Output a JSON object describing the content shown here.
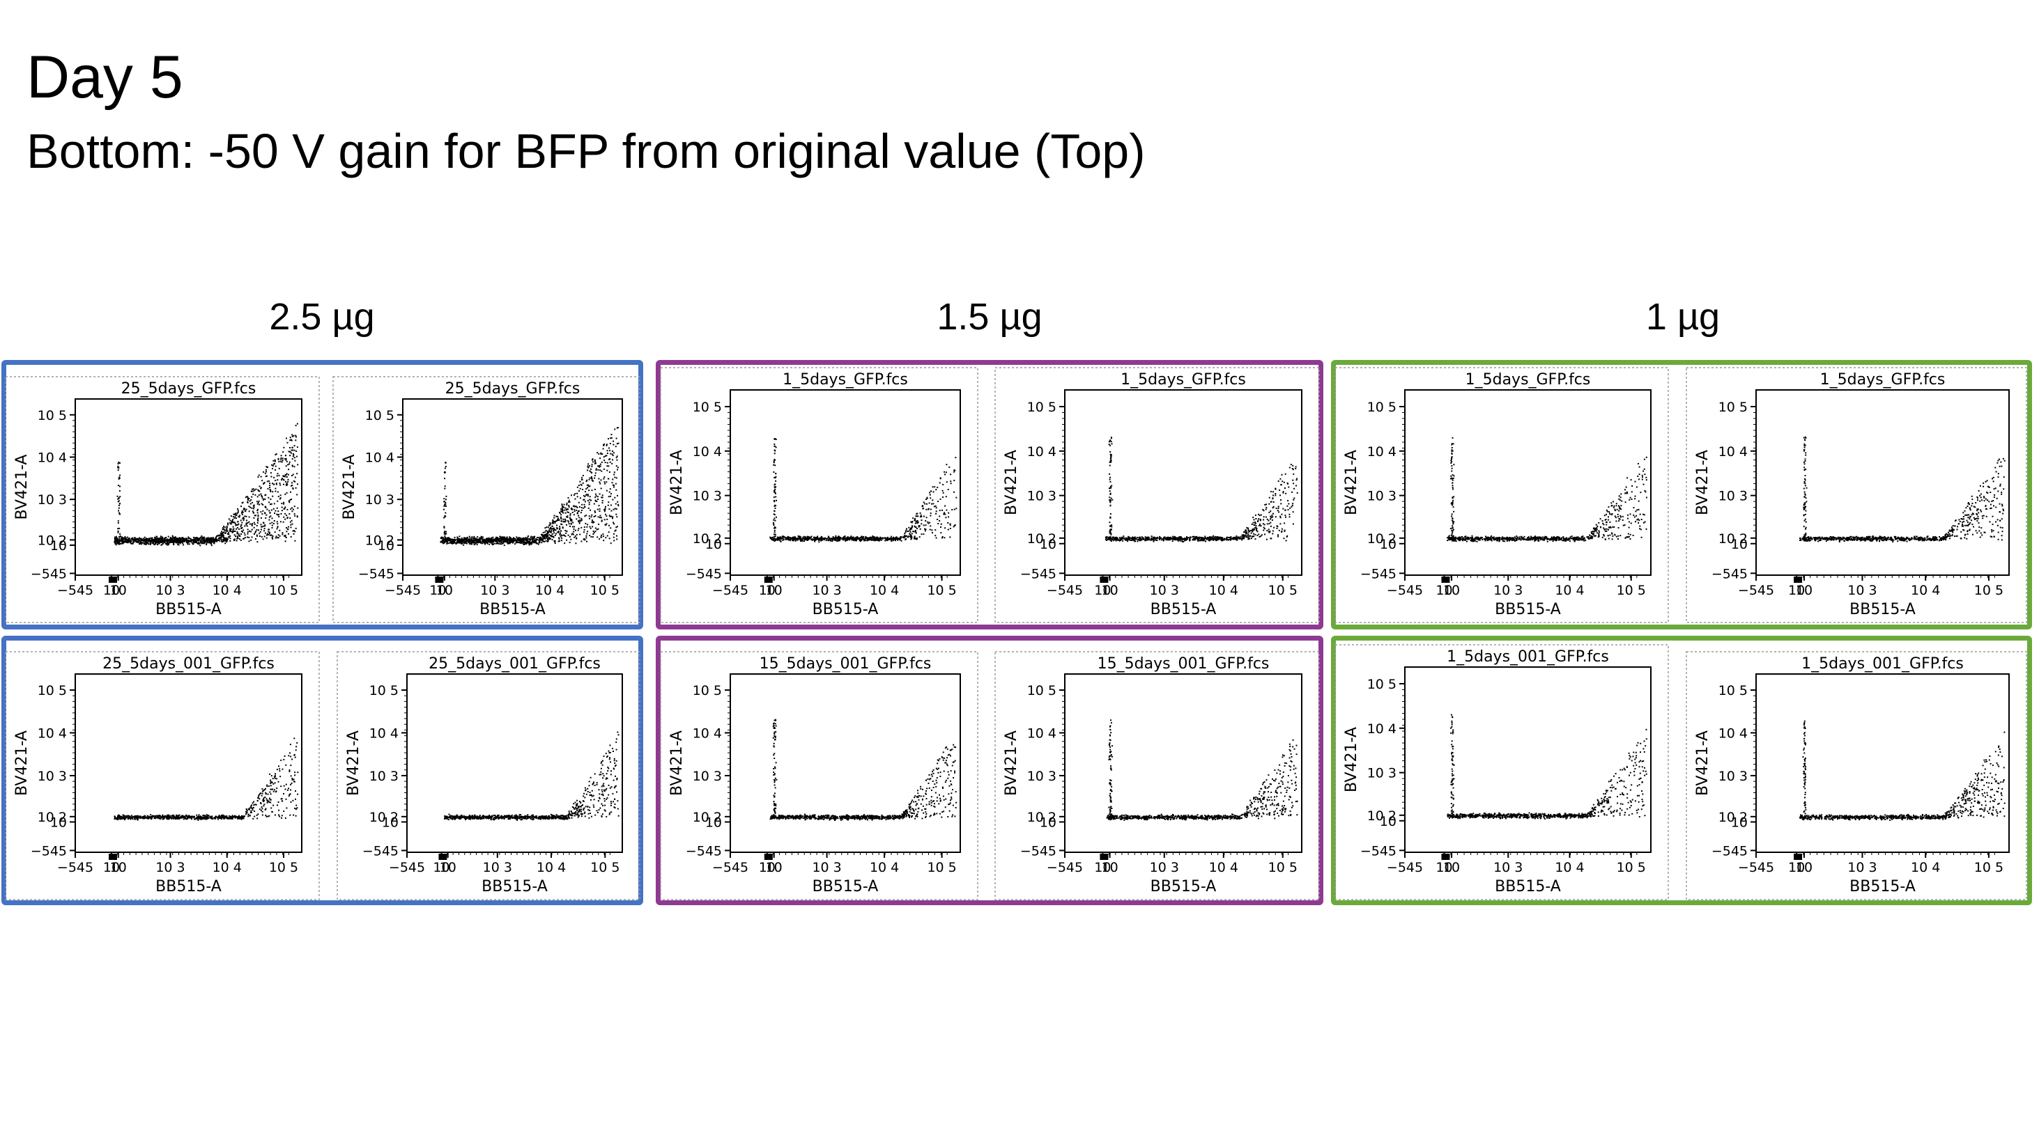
{
  "header": {
    "title": "Day 5",
    "subtitle": "Bottom: -50 V gain for BFP from original value (Top)"
  },
  "colors": {
    "group_2_5": "#4472C4",
    "group_1_5": "#8E3A93",
    "group_1": "#6AAA3A"
  },
  "groups": [
    {
      "label": "2.5 µg",
      "color": "#4472C4"
    },
    {
      "label": "1.5 µg",
      "color": "#8E3A93"
    },
    {
      "label": "1 µg",
      "color": "#6AAA3A"
    }
  ],
  "chart_data": [
    {
      "type": "scatter",
      "group": "2.5 µg",
      "row": "top",
      "title": "25_5days_GFP.fcs",
      "xlabel": "BB515-A",
      "ylabel": "BV421-A",
      "x_ticks": [
        "−545",
        "10",
        "10",
        "10 3",
        "10 4",
        "10 5"
      ],
      "y_ticks": [
        "10 5",
        "10 4",
        "10 3",
        "10 2",
        "10",
        "−545"
      ]
    },
    {
      "type": "scatter",
      "group": "2.5 µg",
      "row": "top",
      "title": "25_5days_GFP.fcs",
      "xlabel": "BB515-A",
      "ylabel": "BV421-A",
      "x_ticks": [
        "−545",
        "10",
        "10",
        "10 3",
        "10 4",
        "10 5"
      ],
      "y_ticks": [
        "10 5",
        "10 4",
        "10 3",
        "10 2",
        "10",
        "−545"
      ]
    },
    {
      "type": "scatter",
      "group": "1.5 µg",
      "row": "top",
      "title": "1_5days_GFP.fcs",
      "xlabel": "BB515-A",
      "ylabel": "BV421-A",
      "x_ticks": [
        "−545",
        "10",
        "10",
        "10 3",
        "10 4",
        "10 5"
      ],
      "y_ticks": [
        "10 5",
        "10 4",
        "10 3",
        "10 2",
        "10",
        "−545"
      ]
    },
    {
      "type": "scatter",
      "group": "1.5 µg",
      "row": "top",
      "title": "1_5days_GFP.fcs",
      "xlabel": "BB515-A",
      "ylabel": "BV421-A",
      "x_ticks": [
        "−545",
        "10",
        "10",
        "10 3",
        "10 4",
        "10 5"
      ],
      "y_ticks": [
        "10 5",
        "10 4",
        "10 3",
        "10 2",
        "10",
        "−545"
      ]
    },
    {
      "type": "scatter",
      "group": "1 µg",
      "row": "top",
      "title": "1_5days_GFP.fcs",
      "xlabel": "BB515-A",
      "ylabel": "BV421-A",
      "x_ticks": [
        "−545",
        "10",
        "10",
        "10 3",
        "10 4",
        "10 5"
      ],
      "y_ticks": [
        "10 5",
        "10 4",
        "10 3",
        "10 2",
        "10",
        "−545"
      ]
    },
    {
      "type": "scatter",
      "group": "1 µg",
      "row": "top",
      "title": "1_5days_GFP.fcs",
      "xlabel": "BB515-A",
      "ylabel": "BV421-A",
      "x_ticks": [
        "−545",
        "10",
        "10",
        "10 3",
        "10 4",
        "10 5"
      ],
      "y_ticks": [
        "10 5",
        "10 4",
        "10 3",
        "10 2",
        "10",
        "−545"
      ]
    },
    {
      "type": "scatter",
      "group": "2.5 µg",
      "row": "bottom",
      "title": "25_5days_001_GFP.fcs",
      "xlabel": "BB515-A",
      "ylabel": "BV421-A",
      "x_ticks": [
        "−545",
        "10",
        "10",
        "10 3",
        "10 4",
        "10 5"
      ],
      "y_ticks": [
        "10 5",
        "10 4",
        "10 3",
        "10 2",
        "10",
        "−545"
      ]
    },
    {
      "type": "scatter",
      "group": "2.5 µg",
      "row": "bottom",
      "title": "25_5days_001_GFP.fcs",
      "xlabel": "BB515-A",
      "ylabel": "BV421-A",
      "x_ticks": [
        "−545",
        "10",
        "10",
        "10 3",
        "10 4",
        "10 5"
      ],
      "y_ticks": [
        "10 5",
        "10 4",
        "10 3",
        "10 2",
        "10",
        "−545"
      ]
    },
    {
      "type": "scatter",
      "group": "1.5 µg",
      "row": "bottom",
      "title": "15_5days_001_GFP.fcs",
      "xlabel": "BB515-A",
      "ylabel": "BV421-A",
      "x_ticks": [
        "−545",
        "10",
        "10",
        "10 3",
        "10 4",
        "10 5"
      ],
      "y_ticks": [
        "10 5",
        "10 4",
        "10 3",
        "10 2",
        "10",
        "−545"
      ]
    },
    {
      "type": "scatter",
      "group": "1.5 µg",
      "row": "bottom",
      "title": "15_5days_001_GFP.fcs",
      "xlabel": "BB515-A",
      "ylabel": "BV421-A",
      "x_ticks": [
        "−545",
        "10",
        "10",
        "10 3",
        "10 4",
        "10 5"
      ],
      "y_ticks": [
        "10 5",
        "10 4",
        "10 3",
        "10 2",
        "10",
        "−545"
      ]
    },
    {
      "type": "scatter",
      "group": "1 µg",
      "row": "bottom",
      "title": "1_5days_001_GFP.fcs",
      "xlabel": "BB515-A",
      "ylabel": "BV421-A",
      "x_ticks": [
        "−545",
        "10",
        "10",
        "10 3",
        "10 4",
        "10 5"
      ],
      "y_ticks": [
        "10 5",
        "10 4",
        "10 3",
        "10 2",
        "10",
        "−545"
      ]
    },
    {
      "type": "scatter",
      "group": "1 µg",
      "row": "bottom",
      "title": "1_5days_001_GFP.fcs",
      "xlabel": "BB515-A",
      "ylabel": "BV421-A",
      "x_ticks": [
        "−545",
        "10",
        "10",
        "10 3",
        "10 4",
        "10 5"
      ],
      "y_ticks": [
        "10 5",
        "10 4",
        "10 3",
        "10 2",
        "10",
        "−545"
      ]
    }
  ]
}
